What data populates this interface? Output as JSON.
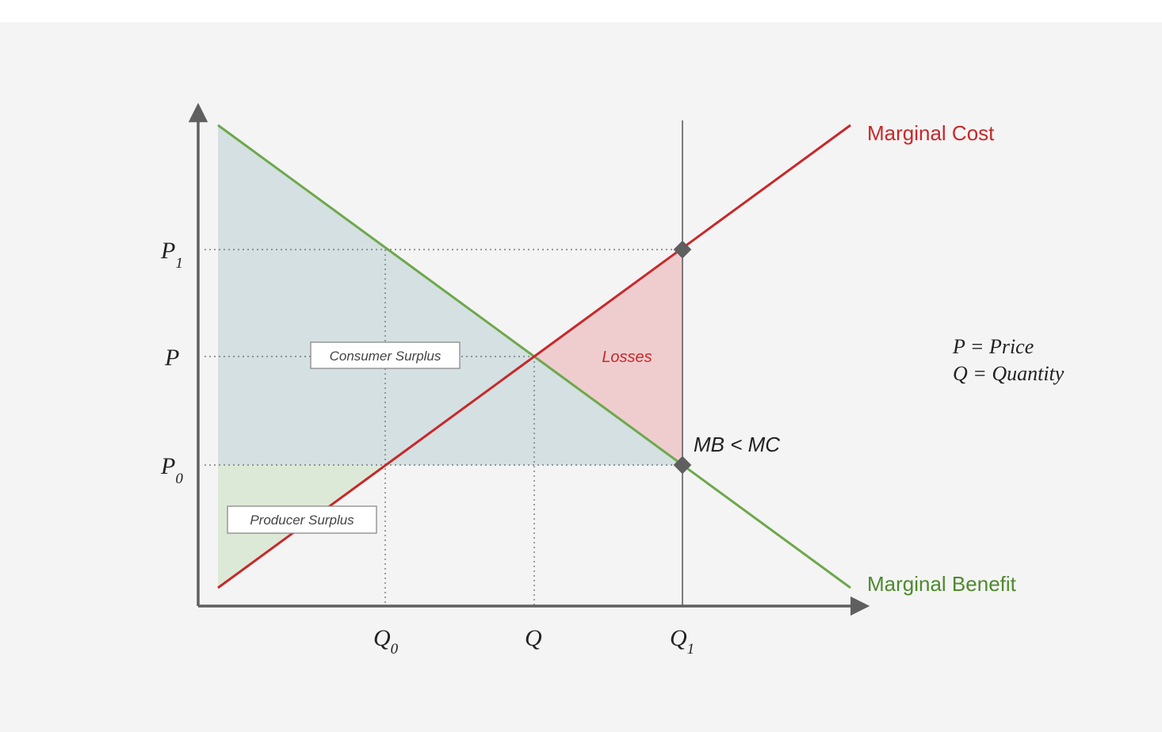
{
  "curves": {
    "marginal_cost": {
      "label": "Marginal Cost",
      "color": "#c8282a"
    },
    "marginal_benefit": {
      "label": "Marginal Benefit",
      "color": "#4e8a2e"
    }
  },
  "price_axis_labels": [
    {
      "text": "P",
      "sub": "1"
    },
    {
      "text": "P",
      "sub": ""
    },
    {
      "text": "P",
      "sub": "0"
    }
  ],
  "quantity_axis_labels": [
    {
      "text": "Q",
      "sub": "0"
    },
    {
      "text": "Q",
      "sub": ""
    },
    {
      "text": "Q",
      "sub": "1"
    }
  ],
  "regions": {
    "consumer_surplus": "Consumer Surplus",
    "producer_surplus": "Producer Surplus",
    "losses": "Losses"
  },
  "annotation": "MB < MC",
  "legend": [
    "P = Price",
    "Q = Quantity"
  ],
  "colors": {
    "consumer_surplus_fill": "#d4e0e2",
    "producer_surplus_fill": "#dde9d7",
    "losses_fill": "#efcdcf",
    "axis": "#5f5f5f",
    "text": "#222222",
    "point_marker": "#5f5f5f"
  }
}
